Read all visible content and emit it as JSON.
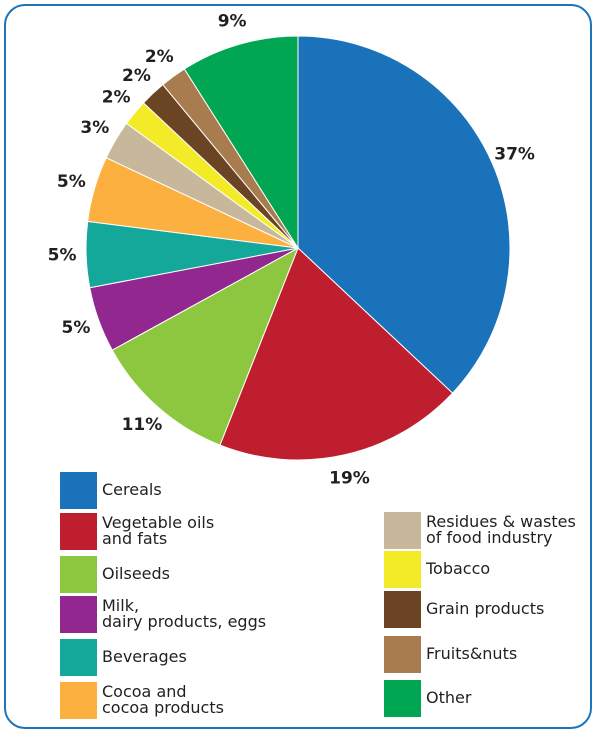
{
  "chart_data": {
    "type": "pie",
    "categories": [
      "Cereals",
      "Vegetable oils\nand fats",
      "Oilseeds",
      "Milk,\ndairy products, eggs",
      "Beverages",
      "Cocoa and\ncocoa products",
      "Residues & wastes\nof food industry",
      "Tobacco",
      "Grain products",
      "Fruits&nuts",
      "Other"
    ],
    "values": [
      37,
      19,
      11,
      5,
      5,
      5,
      3,
      2,
      2,
      2,
      9
    ],
    "value_labels": [
      "37%",
      "19%",
      "11%",
      "5%",
      "5%",
      "5%",
      "3%",
      "2%",
      "2%",
      "2%",
      "9%"
    ],
    "colors": [
      "#1a72bb",
      "#be1e2d",
      "#8dc63f",
      "#92278f",
      "#14a89a",
      "#fbb040",
      "#c8b89b",
      "#f4eb28",
      "#6b4423",
      "#a97c50",
      "#00a651"
    ]
  }
}
